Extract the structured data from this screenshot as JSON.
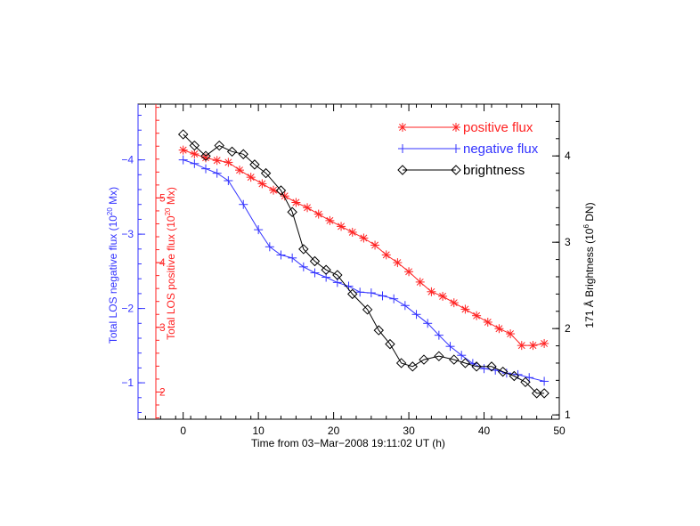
{
  "chart_data": {
    "type": "line",
    "xlabel": "Time from 03−Mar−2008 19:11:02 UT (h)",
    "xlim": [
      -6,
      50
    ],
    "xticks": [
      "0",
      "10",
      "20",
      "30",
      "40",
      "50"
    ],
    "axes": {
      "negative": {
        "label_parts": [
          "Total LOS negative flux (10",
          "20",
          " Mx)"
        ],
        "color": "#3333ff",
        "ticks": [
          "−1",
          "−2",
          "−3",
          "−4"
        ],
        "range": [
          -0.51,
          -4.75
        ]
      },
      "positive": {
        "label_parts": [
          "Total LOS positive flux (10",
          "20",
          " Mx)"
        ],
        "color": "#ff2222",
        "ticks": [
          "2",
          "3",
          "4",
          "5"
        ],
        "range": [
          1.58,
          6.45
        ]
      },
      "brightness": {
        "label_parts": [
          "171 Å Brightness (10",
          "6",
          " DN)"
        ],
        "color": "#000000",
        "ticks": [
          "1",
          "2",
          "3",
          "4"
        ],
        "range": [
          0.95,
          4.6
        ]
      }
    },
    "legend": {
      "position": "top-right",
      "entries": [
        {
          "name": "positive flux",
          "color": "#ff2222",
          "marker": "asterisk"
        },
        {
          "name": "negative flux",
          "color": "#3333ff",
          "marker": "plus"
        },
        {
          "name": "brightness",
          "color": "#000000",
          "marker": "diamond"
        }
      ]
    },
    "series": [
      {
        "name": "positive flux",
        "axis": "positive",
        "color": "#ff2222",
        "marker": "asterisk",
        "x": [
          0,
          1.5,
          3,
          4.5,
          6,
          7.5,
          9,
          10.5,
          12,
          13.5,
          15,
          16.5,
          18,
          19.5,
          21,
          22.5,
          24,
          25.5,
          27,
          28.5,
          30,
          31.5,
          33,
          34.5,
          36,
          37.5,
          39,
          40.5,
          42,
          43.5,
          45,
          46.5,
          48
        ],
        "y": [
          5.74,
          5.68,
          5.62,
          5.58,
          5.55,
          5.43,
          5.32,
          5.22,
          5.12,
          5.03,
          4.93,
          4.85,
          4.75,
          4.65,
          4.56,
          4.47,
          4.38,
          4.27,
          4.12,
          4.0,
          3.86,
          3.7,
          3.55,
          3.48,
          3.38,
          3.28,
          3.18,
          3.08,
          2.98,
          2.9,
          2.72,
          2.72,
          2.75
        ]
      },
      {
        "name": "negative flux",
        "axis": "negative",
        "color": "#3333ff",
        "marker": "plus",
        "x": [
          0,
          1.5,
          3,
          4.5,
          6,
          8,
          10,
          11.5,
          13,
          14.5,
          16,
          17.5,
          19,
          20.5,
          22,
          23.5,
          25,
          26.5,
          28,
          29.5,
          31,
          32.5,
          34,
          35.5,
          37,
          38.5,
          40,
          41.5,
          43,
          44.5,
          46,
          48
        ],
        "y": [
          -4.0,
          -3.95,
          -3.88,
          -3.82,
          -3.72,
          -3.4,
          -3.06,
          -2.83,
          -2.72,
          -2.68,
          -2.56,
          -2.48,
          -2.42,
          -2.35,
          -2.3,
          -2.22,
          -2.21,
          -2.17,
          -2.13,
          -2.04,
          -1.92,
          -1.8,
          -1.64,
          -1.49,
          -1.37,
          -1.26,
          -1.19,
          -1.17,
          -1.13,
          -1.11,
          -1.07,
          -1.02
        ]
      },
      {
        "name": "brightness",
        "axis": "brightness",
        "color": "#000000",
        "marker": "diamond",
        "x": [
          0,
          1.5,
          3,
          4.8,
          6.5,
          8,
          9.5,
          11,
          13,
          14.5,
          16,
          17.5,
          19,
          20.5,
          22.5,
          24.5,
          26,
          27.5,
          29,
          30.5,
          32,
          34,
          36,
          37.5,
          39,
          41,
          42.5,
          44,
          45.5,
          47,
          48
        ],
        "y": [
          4.25,
          4.12,
          4.0,
          4.12,
          4.05,
          4.02,
          3.9,
          3.8,
          3.6,
          3.35,
          2.92,
          2.78,
          2.68,
          2.62,
          2.4,
          2.22,
          1.98,
          1.82,
          1.6,
          1.56,
          1.64,
          1.68,
          1.64,
          1.6,
          1.56,
          1.56,
          1.5,
          1.45,
          1.38,
          1.25,
          1.25
        ]
      }
    ]
  }
}
